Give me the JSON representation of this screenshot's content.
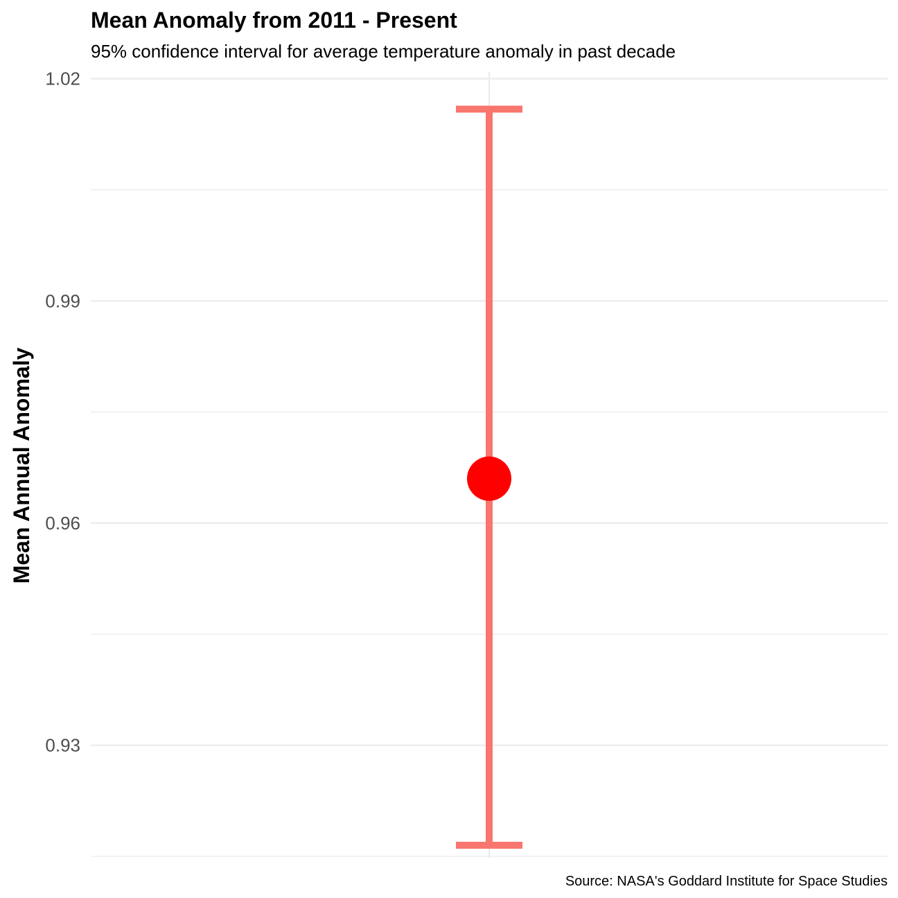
{
  "chart_data": {
    "type": "errorbar",
    "title": "Mean Anomaly from 2011 - Present",
    "subtitle": "95% confidence interval for average temperature anomaly in past decade",
    "xlabel": "",
    "ylabel": "Mean Annual Anomaly",
    "caption": "Source: NASA's Goddard Institute for Space Studies",
    "yticks": [
      "0.93",
      "0.96",
      "0.99",
      "1.02"
    ],
    "ylim": [
      0.9148,
      1.0209
    ],
    "grid": true,
    "point": {
      "y": 0.966
    },
    "interval": {
      "lower": 0.9165,
      "upper": 1.0159
    },
    "colors": {
      "point": "#ff0000",
      "errorbar": "#f8766d"
    }
  }
}
